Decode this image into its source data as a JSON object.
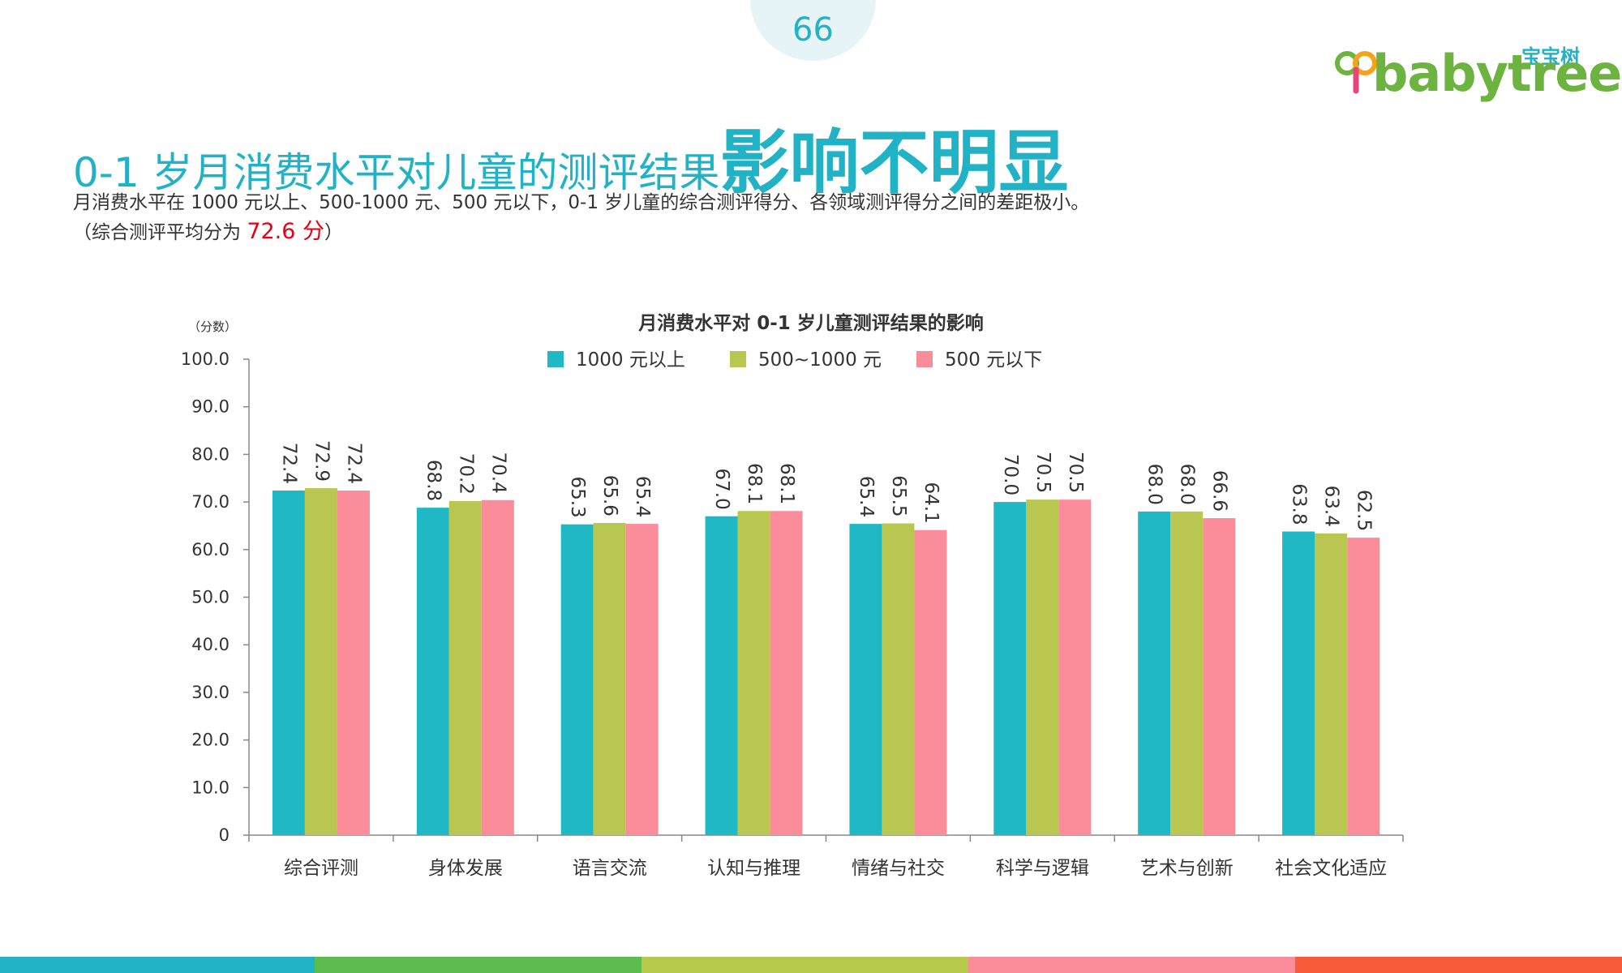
{
  "page_number": "66",
  "logo": {
    "cn": "宝宝树",
    "en": "babytree"
  },
  "title": {
    "part1": "0-1 岁月消费水平对儿童的测评结果",
    "part2": "影响不明显"
  },
  "subtitle": {
    "line1": "月消费水平在 1000 元以上、500-1000 元、500 元以下，0-1 岁儿童的综合测评得分、各领域测评得分之间的差距极小。",
    "line2_prefix": "（综合测评平均分为 ",
    "line2_value": "72.6 分",
    "line2_suffix": "）"
  },
  "colors": {
    "teal": "#21b8c6",
    "olive": "#b9c650",
    "pink": "#fb8d9b",
    "strip": [
      "#21b3c5",
      "#5cbd4e",
      "#b7c94a",
      "#fb8d9b",
      "#f75b3a"
    ]
  },
  "chart_data": {
    "type": "bar",
    "title": "月消费水平对 0-1 岁儿童测评结果的影响",
    "ylabel": "（分数）",
    "ylim": [
      0,
      100
    ],
    "yticks": [
      "0",
      "10.0",
      "20.0",
      "30.0",
      "40.0",
      "50.0",
      "60.0",
      "70.0",
      "80.0",
      "90.0",
      "100.0"
    ],
    "categories": [
      "综合评测",
      "身体发展",
      "语言交流",
      "认知与推理",
      "情绪与社交",
      "科学与逻辑",
      "艺术与创新",
      "社会文化适应"
    ],
    "series": [
      {
        "name": "1000 元以上",
        "color": "#21b8c6",
        "values": [
          72.4,
          68.8,
          65.3,
          67.0,
          65.4,
          70.0,
          68.0,
          63.8
        ]
      },
      {
        "name": "500~1000 元",
        "color": "#b9c650",
        "values": [
          72.9,
          70.2,
          65.6,
          68.1,
          65.5,
          70.5,
          68.0,
          63.4
        ]
      },
      {
        "name": "500 元以下",
        "color": "#fb8d9b",
        "values": [
          72.4,
          70.4,
          65.4,
          68.1,
          64.1,
          70.5,
          66.6,
          62.5
        ]
      }
    ],
    "legend": "top-center",
    "grid": false
  }
}
